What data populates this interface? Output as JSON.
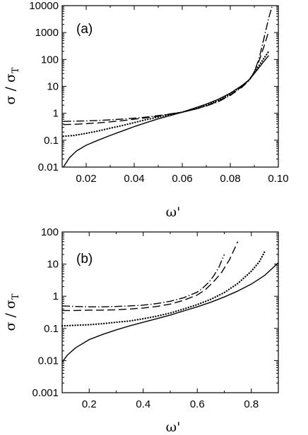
{
  "chart_data": [
    {
      "type": "line",
      "panel_label": "(a)",
      "xlabel_symbol": "ω",
      "xlabel_prime": "'",
      "ylabel_main": "σ / σ",
      "ylabel_sub": "T",
      "xlim": [
        0.01,
        0.1
      ],
      "ylim": [
        0.01,
        10000
      ],
      "yscale": "log",
      "grid": false,
      "xticks": [
        0.02,
        0.04,
        0.06,
        0.08,
        0.1
      ],
      "xtick_labels": [
        "0.02",
        "0.04",
        "0.06",
        "0.08",
        "0.10"
      ],
      "yticks": [
        0.01,
        0.1,
        1,
        10,
        100,
        1000,
        10000
      ],
      "ytick_labels": [
        "0.01",
        "0.1",
        "1",
        "10",
        "100",
        "1000",
        "10000"
      ],
      "series": [
        {
          "style": "solid",
          "x": [
            0.0105,
            0.013,
            0.016,
            0.02,
            0.025,
            0.03,
            0.035,
            0.04,
            0.045,
            0.05,
            0.055,
            0.06,
            0.065,
            0.07,
            0.075,
            0.08,
            0.085,
            0.088,
            0.09,
            0.092,
            0.094,
            0.096
          ],
          "y": [
            0.01,
            0.022,
            0.04,
            0.065,
            0.1,
            0.15,
            0.22,
            0.32,
            0.45,
            0.62,
            0.82,
            1.1,
            1.55,
            2.2,
            3.3,
            5.6,
            11,
            18,
            30,
            50,
            85,
            140
          ]
        },
        {
          "style": "dotted",
          "x": [
            0.0105,
            0.015,
            0.02,
            0.025,
            0.03,
            0.035,
            0.04,
            0.045,
            0.05,
            0.055,
            0.06,
            0.065,
            0.07,
            0.075,
            0.08,
            0.085,
            0.088,
            0.09,
            0.092,
            0.094,
            0.096
          ],
          "y": [
            0.14,
            0.15,
            0.18,
            0.22,
            0.28,
            0.35,
            0.45,
            0.58,
            0.72,
            0.9,
            1.1,
            1.45,
            2.0,
            3.0,
            5.2,
            10.5,
            18,
            32,
            60,
            110,
            200
          ]
        },
        {
          "style": "dashed",
          "x": [
            0.0105,
            0.015,
            0.02,
            0.025,
            0.03,
            0.035,
            0.04,
            0.045,
            0.05,
            0.055,
            0.06,
            0.065,
            0.07,
            0.075,
            0.08,
            0.085,
            0.088,
            0.09,
            0.092,
            0.094,
            0.096
          ],
          "y": [
            0.38,
            0.39,
            0.41,
            0.44,
            0.48,
            0.53,
            0.6,
            0.68,
            0.78,
            0.92,
            1.1,
            1.4,
            1.9,
            2.8,
            4.8,
            10,
            18,
            35,
            90,
            300,
            1100
          ]
        },
        {
          "style": "dashdot",
          "x": [
            0.0105,
            0.015,
            0.02,
            0.025,
            0.03,
            0.035,
            0.04,
            0.045,
            0.05,
            0.055,
            0.06,
            0.065,
            0.07,
            0.075,
            0.08,
            0.085,
            0.088,
            0.09,
            0.092,
            0.094,
            0.096,
            0.0975
          ],
          "y": [
            0.5,
            0.51,
            0.52,
            0.54,
            0.57,
            0.61,
            0.66,
            0.72,
            0.82,
            0.95,
            1.1,
            1.38,
            1.85,
            2.7,
            4.6,
            9.5,
            17,
            35,
            110,
            600,
            3500,
            10000
          ]
        }
      ]
    },
    {
      "type": "line",
      "panel_label": "(b)",
      "xlabel_symbol": "ω",
      "xlabel_prime": "'",
      "ylabel_main": "σ / σ",
      "ylabel_sub": "T",
      "xlim": [
        0.1,
        0.9
      ],
      "ylim": [
        0.001,
        100
      ],
      "yscale": "log",
      "grid": false,
      "xticks": [
        0.2,
        0.4,
        0.6,
        0.8
      ],
      "xtick_labels": [
        "0.2",
        "0.4",
        "0.6",
        "0.8"
      ],
      "yticks": [
        0.001,
        0.01,
        0.1,
        1,
        10,
        100
      ],
      "ytick_labels": [
        "0.001",
        "0.01",
        "0.1",
        "1",
        "10",
        "100"
      ],
      "series": [
        {
          "style": "solid",
          "x": [
            0.1,
            0.12,
            0.15,
            0.2,
            0.25,
            0.3,
            0.35,
            0.4,
            0.45,
            0.5,
            0.55,
            0.6,
            0.65,
            0.7,
            0.75,
            0.8,
            0.85,
            0.9
          ],
          "y": [
            0.009,
            0.015,
            0.025,
            0.045,
            0.065,
            0.09,
            0.12,
            0.155,
            0.2,
            0.26,
            0.35,
            0.47,
            0.65,
            0.95,
            1.45,
            2.4,
            4.5,
            11
          ]
        },
        {
          "style": "dotted",
          "x": [
            0.1,
            0.15,
            0.2,
            0.25,
            0.3,
            0.35,
            0.4,
            0.45,
            0.5,
            0.55,
            0.6,
            0.65,
            0.7,
            0.75,
            0.8,
            0.83,
            0.85
          ],
          "y": [
            0.12,
            0.125,
            0.13,
            0.14,
            0.155,
            0.17,
            0.2,
            0.24,
            0.3,
            0.4,
            0.55,
            0.8,
            1.3,
            2.5,
            6,
            12,
            25
          ]
        },
        {
          "style": "dashed",
          "x": [
            0.1,
            0.15,
            0.2,
            0.25,
            0.3,
            0.35,
            0.4,
            0.45,
            0.5,
            0.55,
            0.6,
            0.63,
            0.66,
            0.69,
            0.72,
            0.75
          ],
          "y": [
            0.36,
            0.36,
            0.37,
            0.37,
            0.38,
            0.4,
            0.43,
            0.48,
            0.57,
            0.75,
            1.1,
            1.6,
            2.8,
            5.5,
            14,
            50
          ]
        },
        {
          "style": "dashdot",
          "x": [
            0.1,
            0.15,
            0.2,
            0.25,
            0.3,
            0.35,
            0.4,
            0.45,
            0.5,
            0.55,
            0.6,
            0.62,
            0.64,
            0.66,
            0.68,
            0.7
          ],
          "y": [
            0.5,
            0.48,
            0.47,
            0.47,
            0.48,
            0.5,
            0.53,
            0.59,
            0.7,
            0.9,
            1.35,
            1.8,
            2.6,
            4.2,
            8,
            20
          ]
        }
      ]
    }
  ]
}
